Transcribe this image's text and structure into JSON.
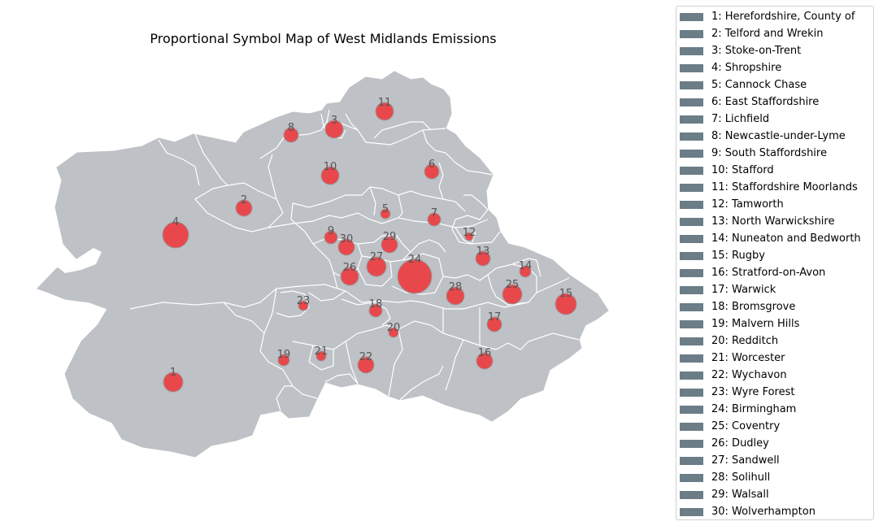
{
  "title": "Proportional Symbol Map of West Midlands Emissions",
  "colors": {
    "land": "#bec1c6",
    "boundary": "#ffffff",
    "bubble_fill": "#e8484c",
    "bubble_stroke": "#9a9a9a",
    "legend_swatch": "#6b7d87"
  },
  "districts": [
    {
      "id": "1",
      "name": "Herefordshire, County of"
    },
    {
      "id": "2",
      "name": "Telford and Wrekin"
    },
    {
      "id": "3",
      "name": "Stoke-on-Trent"
    },
    {
      "id": "4",
      "name": "Shropshire"
    },
    {
      "id": "5",
      "name": "Cannock Chase"
    },
    {
      "id": "6",
      "name": "East Staffordshire"
    },
    {
      "id": "7",
      "name": "Lichfield"
    },
    {
      "id": "8",
      "name": "Newcastle-under-Lyme"
    },
    {
      "id": "9",
      "name": "South Staffordshire"
    },
    {
      "id": "10",
      "name": "Stafford"
    },
    {
      "id": "11",
      "name": "Staffordshire Moorlands"
    },
    {
      "id": "12",
      "name": "Tamworth"
    },
    {
      "id": "13",
      "name": "North Warwickshire"
    },
    {
      "id": "14",
      "name": "Nuneaton and Bedworth"
    },
    {
      "id": "15",
      "name": "Rugby"
    },
    {
      "id": "16",
      "name": "Stratford-on-Avon"
    },
    {
      "id": "17",
      "name": "Warwick"
    },
    {
      "id": "18",
      "name": "Bromsgrove"
    },
    {
      "id": "19",
      "name": "Malvern Hills"
    },
    {
      "id": "20",
      "name": "Redditch"
    },
    {
      "id": "21",
      "name": "Worcester"
    },
    {
      "id": "22",
      "name": "Wychavon"
    },
    {
      "id": "23",
      "name": "Wyre Forest"
    },
    {
      "id": "24",
      "name": "Birmingham"
    },
    {
      "id": "25",
      "name": "Coventry"
    },
    {
      "id": "26",
      "name": "Dudley"
    },
    {
      "id": "27",
      "name": "Sandwell"
    },
    {
      "id": "28",
      "name": "Solihull"
    },
    {
      "id": "29",
      "name": "Walsall"
    },
    {
      "id": "30",
      "name": "Wolverhampton"
    }
  ]
}
